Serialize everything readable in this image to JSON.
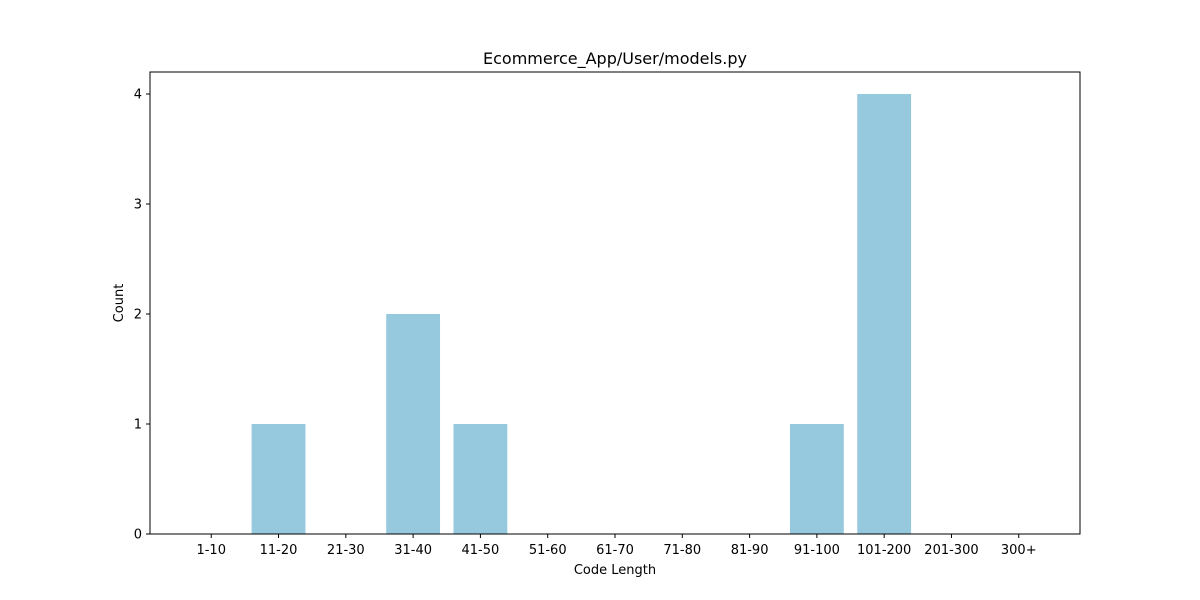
{
  "chart_data": {
    "type": "bar",
    "title": "Ecommerce_App/User/models.py",
    "xlabel": "Code Length",
    "ylabel": "Count",
    "categories": [
      "1-10",
      "11-20",
      "21-30",
      "31-40",
      "41-50",
      "51-60",
      "61-70",
      "71-80",
      "81-90",
      "91-100",
      "101-200",
      "201-300",
      "300+"
    ],
    "values": [
      0,
      1,
      0,
      2,
      1,
      0,
      0,
      0,
      0,
      1,
      4,
      0,
      0
    ],
    "ylim": [
      0,
      4.2
    ],
    "yticks": [
      0,
      1,
      2,
      3,
      4
    ],
    "bar_color": "#96c9dd",
    "grid": false,
    "legend": "none"
  }
}
